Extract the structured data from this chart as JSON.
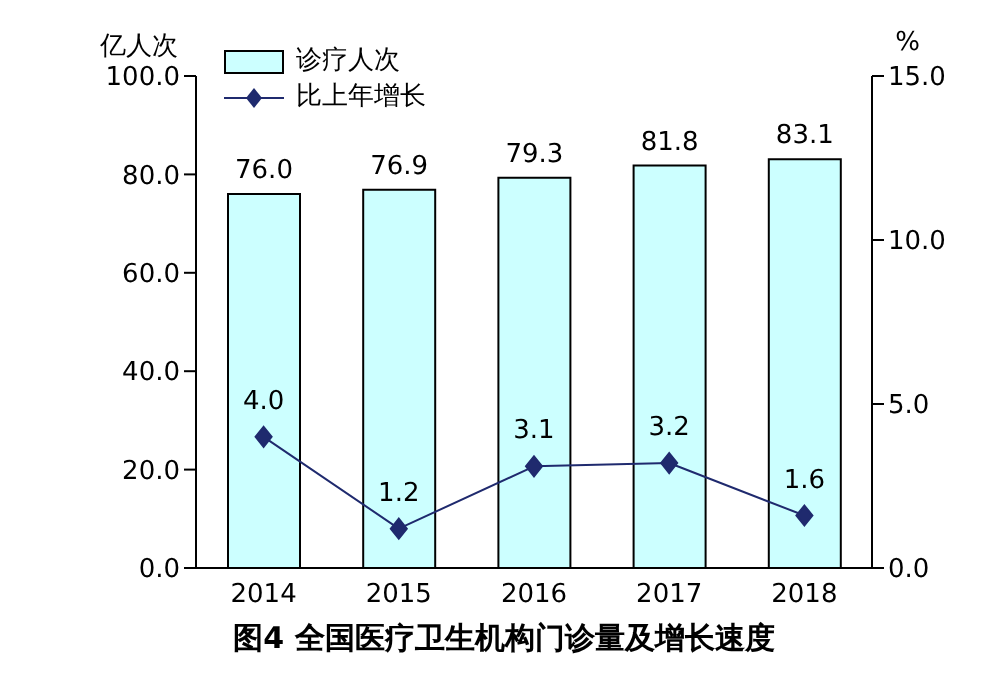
{
  "chart_data": {
    "type": "bar",
    "title": "图4  全国医疗卫生机构门诊量及增长速度",
    "ylabel": "亿人次",
    "y2label": "%",
    "categories": [
      "2014",
      "2015",
      "2016",
      "2017",
      "2018"
    ],
    "series": [
      {
        "name": "诊疗人次",
        "color": "#ccffff",
        "values": [
          76.0,
          76.9,
          79.3,
          81.8,
          83.1
        ],
        "value_labels": [
          "76.0",
          "76.9",
          "79.3",
          "81.8",
          "83.1"
        ]
      },
      {
        "name": "比上年增长",
        "type": "line",
        "axis": "y2",
        "color": "#1f2a6e",
        "marker": "diamond",
        "values": [
          4.0,
          1.2,
          3.1,
          3.2,
          1.6
        ],
        "value_labels": [
          "4.0",
          "1.2",
          "3.1",
          "3.2",
          "1.6"
        ]
      }
    ],
    "ylim": [
      0,
      100
    ],
    "yticks": [
      {
        "value": 0,
        "label": "0.0"
      },
      {
        "value": 20,
        "label": "20.0"
      },
      {
        "value": 40,
        "label": "40.0"
      },
      {
        "value": 60,
        "label": "60.0"
      },
      {
        "value": 80,
        "label": "80.0"
      },
      {
        "value": 100,
        "label": "100.0"
      }
    ],
    "y2lim": [
      0,
      15
    ],
    "y2ticks": [
      {
        "value": 0,
        "label": "0.0"
      },
      {
        "value": 5,
        "label": "5.0"
      },
      {
        "value": 10,
        "label": "10.0"
      },
      {
        "value": 15,
        "label": "15.0"
      }
    ],
    "grid": false,
    "legend": "top left"
  }
}
